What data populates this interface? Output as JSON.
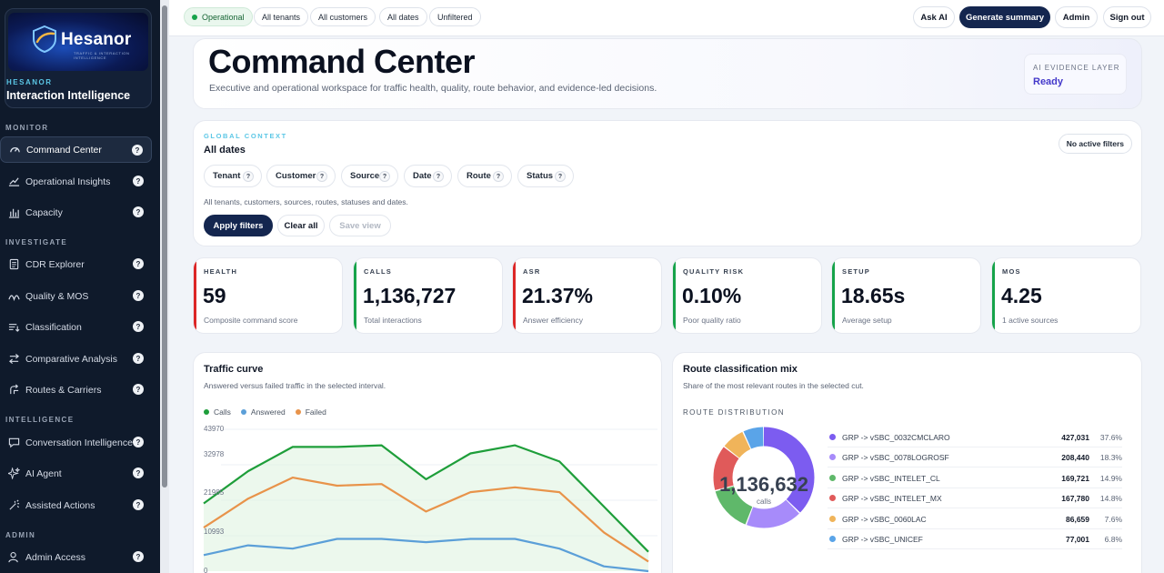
{
  "sidebar": {
    "brand": {
      "logo_word": "Hesanor",
      "logo_tagline": "TRAFFIC & INTERACTION INTELLIGENCE",
      "small": "HESANOR",
      "name": "Interaction Intelligence"
    },
    "sections": {
      "monitor": "MONITOR",
      "investigate": "INVESTIGATE",
      "intelligence": "INTELLIGENCE",
      "admin": "ADMIN"
    },
    "items": [
      {
        "label": "Command Center",
        "icon": "gauge-icon",
        "active": true
      },
      {
        "label": "Operational Insights",
        "icon": "trend-icon"
      },
      {
        "label": "Capacity",
        "icon": "bar-chart-icon"
      },
      {
        "label": "CDR Explorer",
        "icon": "document-icon"
      },
      {
        "label": "Quality & MOS",
        "icon": "signal-wave-icon"
      },
      {
        "label": "Classification",
        "icon": "list-sort-icon"
      },
      {
        "label": "Comparative Analysis",
        "icon": "compare-arrows-icon"
      },
      {
        "label": "Routes & Carriers",
        "icon": "route-icon"
      },
      {
        "label": "Conversation Intelligence",
        "icon": "chat-icon"
      },
      {
        "label": "AI Agent",
        "icon": "sparkle-icon"
      },
      {
        "label": "Assisted Actions",
        "icon": "magic-wand-icon"
      },
      {
        "label": "Admin Access",
        "icon": "user-icon"
      }
    ],
    "help_glyph": "?"
  },
  "topbar": {
    "chips": [
      "Operational",
      "All tenants",
      "All customers",
      "All dates",
      "Unfiltered"
    ],
    "buttons": {
      "ask_ai": "Ask AI",
      "generate": "Generate summary",
      "admin": "Admin",
      "sign_out": "Sign out"
    }
  },
  "hero": {
    "title": "Command Center",
    "subtitle": "Executive and operational workspace for traffic health, quality, route behavior, and evidence-led decisions.",
    "evidence_label": "AI EVIDENCE LAYER",
    "evidence_value": "Ready"
  },
  "context": {
    "eyebrow": "GLOBAL CONTEXT",
    "title": "All dates",
    "no_filters": "No active filters",
    "filters": [
      "Tenant",
      "Customer",
      "Source",
      "Date",
      "Route",
      "Status"
    ],
    "summary": "All tenants, customers, sources, routes, statuses and dates.",
    "actions": {
      "apply": "Apply filters",
      "clear": "Clear all",
      "save": "Save view"
    }
  },
  "kpis": [
    {
      "label": "HEALTH",
      "value": "59",
      "note": "Composite command score",
      "color": "#dc2626"
    },
    {
      "label": "CALLS",
      "value": "1,136,727",
      "note": "Total interactions",
      "color": "#16a34a"
    },
    {
      "label": "ASR",
      "value": "21.37%",
      "note": "Answer efficiency",
      "color": "#dc2626"
    },
    {
      "label": "QUALITY RISK",
      "value": "0.10%",
      "note": "Poor quality ratio",
      "color": "#16a34a"
    },
    {
      "label": "SETUP",
      "value": "18.65s",
      "note": "Average setup",
      "color": "#16a34a"
    },
    {
      "label": "MOS",
      "value": "4.25",
      "note": "1 active sources",
      "color": "#16a34a"
    }
  ],
  "traffic": {
    "title": "Traffic curve",
    "subtitle": "Answered versus failed traffic in the selected interval.",
    "y_ticks": [
      "43970",
      "32978",
      "21985",
      "10993",
      "0"
    ]
  },
  "route_mix": {
    "title": "Route classification mix",
    "subtitle": "Share of the most relevant routes in the selected cut.",
    "distribution_label": "ROUTE DISTRIBUTION",
    "total": "1,136,632",
    "total_label": "calls",
    "rows": [
      {
        "name": "GRP -> vSBC_0032CMCLARO",
        "count": "427,031",
        "pct": "37.6%",
        "color": "#7c5cf0"
      },
      {
        "name": "GRP -> vSBC_0078LOGROSF",
        "count": "208,440",
        "pct": "18.3%",
        "color": "#a78bfa"
      },
      {
        "name": "GRP -> vSBC_INTELET_CL",
        "count": "169,721",
        "pct": "14.9%",
        "color": "#5fb86a"
      },
      {
        "name": "GRP -> vSBC_INTELET_MX",
        "count": "167,780",
        "pct": "14.8%",
        "color": "#e05a5a"
      },
      {
        "name": "GRP -> vSBC_0060LAC",
        "count": "86,659",
        "pct": "7.6%",
        "color": "#f0b45a"
      },
      {
        "name": "GRP -> vSBC_UNICEF",
        "count": "77,001",
        "pct": "6.8%",
        "color": "#5aa4e8"
      }
    ]
  },
  "chart_data": [
    {
      "type": "area",
      "title": "Traffic curve",
      "ylim": [
        0,
        43970
      ],
      "x": [
        0,
        1,
        2,
        3,
        4,
        5,
        6,
        7,
        8,
        9,
        10
      ],
      "series": [
        {
          "name": "Calls",
          "color": "#1e9e3a",
          "values": [
            21000,
            31000,
            38500,
            38500,
            39000,
            28500,
            36500,
            39000,
            34000,
            20000,
            6000
          ]
        },
        {
          "name": "Answered",
          "color": "#5b9fd8",
          "values": [
            5000,
            8000,
            7000,
            10000,
            10000,
            9000,
            10000,
            10000,
            7000,
            1500,
            0
          ]
        },
        {
          "name": "Failed",
          "color": "#e8934a",
          "values": [
            13500,
            22500,
            29000,
            26500,
            27000,
            18500,
            24500,
            26000,
            24500,
            12000,
            3000
          ]
        }
      ]
    },
    {
      "type": "pie",
      "title": "Route classification mix",
      "categories": [
        "GRP -> vSBC_0032CMCLARO",
        "GRP -> vSBC_0078LOGROSF",
        "GRP -> vSBC_INTELET_CL",
        "GRP -> vSBC_INTELET_MX",
        "GRP -> vSBC_0060LAC",
        "GRP -> vSBC_UNICEF"
      ],
      "values": [
        427031,
        208440,
        169721,
        167780,
        86659,
        77001
      ],
      "colors": [
        "#7c5cf0",
        "#a78bfa",
        "#5fb86a",
        "#e05a5a",
        "#f0b45a",
        "#5aa4e8"
      ]
    }
  ]
}
